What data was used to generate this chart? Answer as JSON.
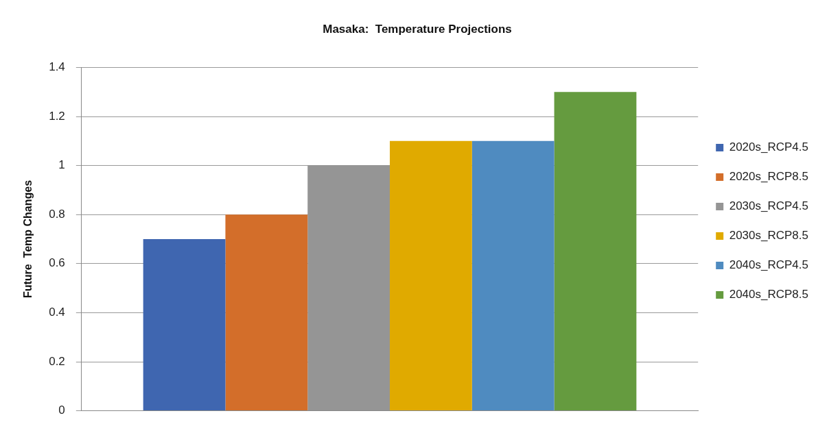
{
  "chart_data": {
    "type": "bar",
    "title": "Masaka:  Temperature Projections",
    "ylabel": "Future  Temp Changes",
    "categories": [
      null
    ],
    "series": [
      {
        "name": "2020s_RCP4.5",
        "color": "#3f66b0",
        "values": [
          0.7
        ]
      },
      {
        "name": "2020s_RCP8.5",
        "color": "#d36e2a",
        "values": [
          0.8
        ]
      },
      {
        "name": "2030s_RCP4.5",
        "color": "#959595",
        "values": [
          1.0
        ]
      },
      {
        "name": "2030s_RCP8.5",
        "color": "#e0aa00",
        "values": [
          1.1
        ]
      },
      {
        "name": "2040s_RCP4.5",
        "color": "#4f8bc0",
        "values": [
          1.1
        ]
      },
      {
        "name": "2040s_RCP8.5",
        "color": "#659b3f",
        "values": [
          1.3
        ]
      }
    ],
    "ylim": [
      0,
      1.4
    ],
    "yticks": [
      0,
      0.2,
      0.4,
      0.6,
      0.8,
      1,
      1.2,
      1.4
    ],
    "grid": "y",
    "legend": "right"
  }
}
